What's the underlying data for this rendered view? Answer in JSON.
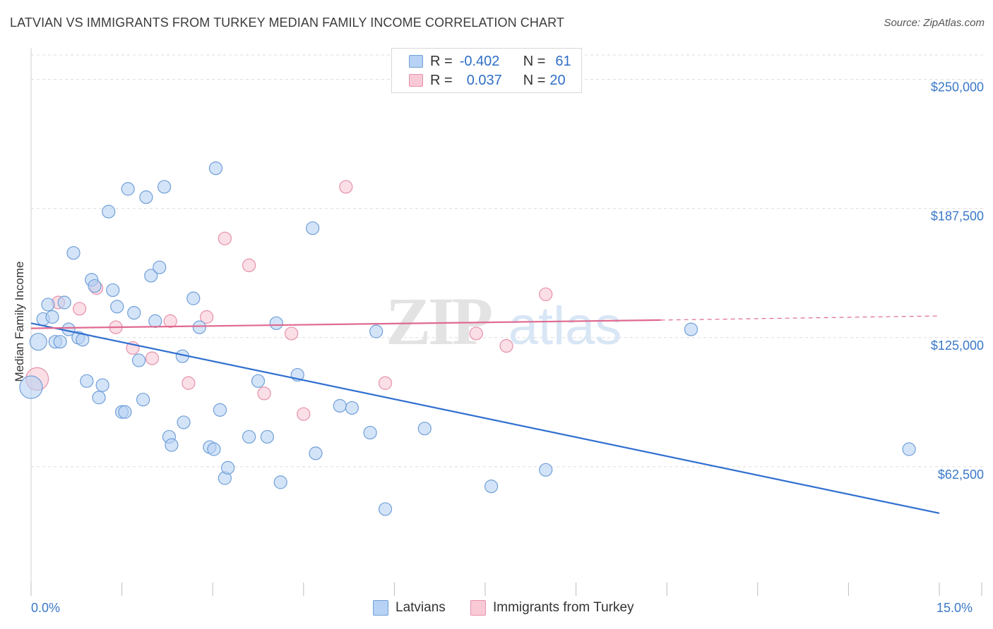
{
  "header": {
    "title": "LATVIAN VS IMMIGRANTS FROM TURKEY MEDIAN FAMILY INCOME CORRELATION CHART",
    "source": "Source: ZipAtlas.com"
  },
  "watermark": {
    "zip": "ZIP",
    "atlas": "atlas"
  },
  "legend": {
    "rows": [
      {
        "r_label": "R =",
        "r_value": "-0.402",
        "n_label": "N =",
        "n_value": "61"
      },
      {
        "r_label": "R =",
        "r_value": "0.037",
        "n_label": "N =",
        "n_value": "20"
      }
    ]
  },
  "bottom_legend": {
    "latvians": "Latvians",
    "turkey": "Immigrants from Turkey"
  },
  "axis": {
    "x_min_label": "0.0%",
    "x_max_label": "15.0%",
    "y_label": "Median Family Income",
    "y_ticks": [
      "$62,500",
      "$125,000",
      "$187,500",
      "$250,000"
    ]
  },
  "colors": {
    "blue_fill": "#b7d2f4",
    "blue_stroke": "#6f9fd8",
    "blue_line": "#2f6fd0",
    "pink_fill": "#f9c9d6",
    "pink_stroke": "#e690aa",
    "pink_line": "#e06a90",
    "tick_text": "#3a78c9"
  },
  "chart_data": {
    "type": "scatter",
    "title": "LATVIAN VS IMMIGRANTS FROM TURKEY MEDIAN FAMILY INCOME CORRELATION CHART",
    "xlabel": "",
    "ylabel": "Median Family Income",
    "xlim": [
      0,
      15
    ],
    "ylim": [
      0,
      262500
    ],
    "y_ticks": [
      62500,
      125000,
      187500,
      250000
    ],
    "series": [
      {
        "name": "Latvians",
        "R": -0.402,
        "N": 61,
        "trend": {
          "x": [
            0,
            15
          ],
          "y": [
            132000,
            40000
          ]
        },
        "points": [
          {
            "x": 0.0,
            "y": 101000,
            "s": 16
          },
          {
            "x": 0.12,
            "y": 123000,
            "s": 12
          },
          {
            "x": 0.2,
            "y": 134000
          },
          {
            "x": 0.28,
            "y": 141000
          },
          {
            "x": 0.35,
            "y": 135000
          },
          {
            "x": 0.4,
            "y": 123000
          },
          {
            "x": 0.48,
            "y": 123000
          },
          {
            "x": 0.55,
            "y": 142000
          },
          {
            "x": 0.62,
            "y": 129000
          },
          {
            "x": 0.7,
            "y": 166000
          },
          {
            "x": 0.78,
            "y": 125000
          },
          {
            "x": 0.85,
            "y": 124000
          },
          {
            "x": 0.92,
            "y": 104000
          },
          {
            "x": 1.0,
            "y": 153000
          },
          {
            "x": 1.05,
            "y": 150000
          },
          {
            "x": 1.12,
            "y": 96000
          },
          {
            "x": 1.18,
            "y": 102000
          },
          {
            "x": 1.28,
            "y": 186000
          },
          {
            "x": 1.35,
            "y": 148000
          },
          {
            "x": 1.42,
            "y": 140000
          },
          {
            "x": 1.5,
            "y": 89000
          },
          {
            "x": 1.55,
            "y": 89000
          },
          {
            "x": 1.6,
            "y": 197000
          },
          {
            "x": 1.7,
            "y": 137000
          },
          {
            "x": 1.78,
            "y": 114000
          },
          {
            "x": 1.85,
            "y": 95000
          },
          {
            "x": 1.9,
            "y": 193000
          },
          {
            "x": 1.98,
            "y": 155000
          },
          {
            "x": 2.05,
            "y": 133000
          },
          {
            "x": 2.12,
            "y": 159000
          },
          {
            "x": 2.2,
            "y": 198000
          },
          {
            "x": 2.28,
            "y": 77000
          },
          {
            "x": 2.32,
            "y": 73000
          },
          {
            "x": 2.5,
            "y": 116000
          },
          {
            "x": 2.52,
            "y": 84000
          },
          {
            "x": 2.68,
            "y": 144000
          },
          {
            "x": 2.78,
            "y": 130000
          },
          {
            "x": 2.95,
            "y": 72000
          },
          {
            "x": 3.02,
            "y": 71000
          },
          {
            "x": 3.05,
            "y": 207000
          },
          {
            "x": 3.12,
            "y": 90000
          },
          {
            "x": 3.2,
            "y": 57000
          },
          {
            "x": 3.25,
            "y": 62000
          },
          {
            "x": 3.6,
            "y": 77000
          },
          {
            "x": 3.75,
            "y": 104000
          },
          {
            "x": 3.9,
            "y": 77000
          },
          {
            "x": 4.05,
            "y": 132000
          },
          {
            "x": 4.12,
            "y": 55000
          },
          {
            "x": 4.4,
            "y": 107000
          },
          {
            "x": 4.7,
            "y": 69000
          },
          {
            "x": 4.65,
            "y": 178000
          },
          {
            "x": 5.1,
            "y": 92000
          },
          {
            "x": 5.3,
            "y": 91000
          },
          {
            "x": 5.6,
            "y": 79000
          },
          {
            "x": 5.7,
            "y": 128000
          },
          {
            "x": 5.85,
            "y": 42000
          },
          {
            "x": 6.5,
            "y": 81000
          },
          {
            "x": 7.6,
            "y": 53000
          },
          {
            "x": 8.5,
            "y": 61000
          },
          {
            "x": 10.9,
            "y": 129000
          },
          {
            "x": 14.5,
            "y": 71000
          }
        ]
      },
      {
        "name": "Immigrants from Turkey",
        "R": 0.037,
        "N": 20,
        "trend": {
          "x": [
            0,
            10.4
          ],
          "y": [
            129500,
            133500
          ],
          "dashed_to_x": 15,
          "dashed_to_y": 135500
        },
        "points": [
          {
            "x": 0.1,
            "y": 105000,
            "s": 16
          },
          {
            "x": 0.45,
            "y": 142000
          },
          {
            "x": 0.8,
            "y": 139000
          },
          {
            "x": 1.08,
            "y": 149000
          },
          {
            "x": 1.4,
            "y": 130000
          },
          {
            "x": 1.68,
            "y": 120000
          },
          {
            "x": 2.0,
            "y": 115000
          },
          {
            "x": 2.3,
            "y": 133000
          },
          {
            "x": 2.6,
            "y": 103000
          },
          {
            "x": 2.9,
            "y": 135000
          },
          {
            "x": 3.2,
            "y": 173000
          },
          {
            "x": 3.6,
            "y": 160000
          },
          {
            "x": 3.85,
            "y": 98000
          },
          {
            "x": 4.3,
            "y": 127000
          },
          {
            "x": 4.5,
            "y": 88000
          },
          {
            "x": 5.2,
            "y": 198000
          },
          {
            "x": 5.85,
            "y": 103000
          },
          {
            "x": 7.35,
            "y": 127000
          },
          {
            "x": 7.85,
            "y": 121000
          },
          {
            "x": 8.5,
            "y": 146000
          }
        ]
      }
    ]
  }
}
